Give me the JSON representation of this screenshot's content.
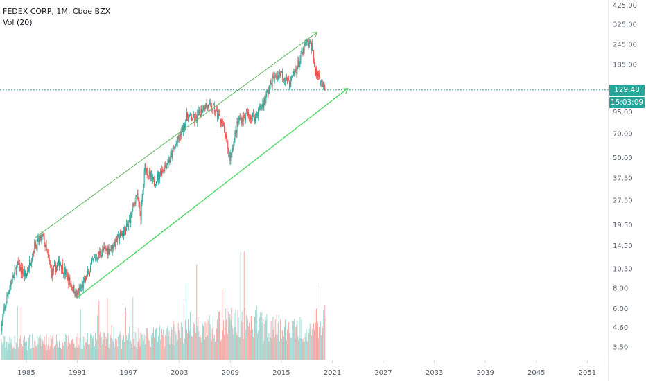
{
  "header": {
    "symbol": "FEDEX CORP",
    "interval": "1M",
    "exchange": "Cboe BZX",
    "volume_label": "Vol (20)"
  },
  "badges": {
    "price": "129.48",
    "countdown": "15:03:09"
  },
  "colors": {
    "up": "#26a69a",
    "down": "#ef5350",
    "vol_up": "#9fd9d3",
    "vol_down": "#f5a7a5",
    "upper_channel": "#66bb6a",
    "lower_channel": "#4cd964",
    "price_line": "#26a69a"
  },
  "chart_data": {
    "type": "candlestick",
    "title": "FEDEX CORP, 1M, Cboe BZX",
    "y_scale": "log",
    "x_ticks": [
      "1985",
      "1991",
      "1997",
      "2003",
      "2009",
      "2015",
      "2021",
      "2027",
      "2033",
      "2039",
      "2045",
      "2051"
    ],
    "y_ticks": [
      "425.00",
      "325.00",
      "245.00",
      "185.00",
      "129.48",
      "95.00",
      "70.00",
      "50.00",
      "37.50",
      "27.50",
      "19.50",
      "14.50",
      "10.50",
      "8.00",
      "6.00",
      "4.60",
      "3.50"
    ],
    "ylim": [
      3.2,
      440
    ],
    "xlim": [
      1981.9,
      2053.5
    ],
    "last_price": 129.48,
    "price_path": [
      [
        1982.0,
        4.5
      ],
      [
        1983.0,
        8.0
      ],
      [
        1984.0,
        11.0
      ],
      [
        1985.0,
        9.5
      ],
      [
        1986.0,
        14.5
      ],
      [
        1987.0,
        16.5
      ],
      [
        1988.0,
        10.0
      ],
      [
        1989.0,
        11.5
      ],
      [
        1990.0,
        9.0
      ],
      [
        1991.0,
        7.2
      ],
      [
        1992.0,
        9.0
      ],
      [
        1993.0,
        12.0
      ],
      [
        1994.0,
        13.5
      ],
      [
        1995.0,
        14.0
      ],
      [
        1996.0,
        16.5
      ],
      [
        1997.0,
        19.0
      ],
      [
        1998.0,
        30.0
      ],
      [
        1998.5,
        22.0
      ],
      [
        1999.0,
        44.0
      ],
      [
        2000.0,
        35.0
      ],
      [
        2001.0,
        42.0
      ],
      [
        2002.0,
        50.0
      ],
      [
        2003.0,
        66.0
      ],
      [
        2004.0,
        90.0
      ],
      [
        2005.0,
        85.0
      ],
      [
        2006.0,
        105.0
      ],
      [
        2007.0,
        100.0
      ],
      [
        2008.0,
        85.0
      ],
      [
        2009.0,
        50.0
      ],
      [
        2010.0,
        85.0
      ],
      [
        2011.0,
        90.0
      ],
      [
        2012.0,
        90.0
      ],
      [
        2013.0,
        110.0
      ],
      [
        2014.0,
        150.0
      ],
      [
        2015.0,
        165.0
      ],
      [
        2016.0,
        140.0
      ],
      [
        2017.0,
        185.0
      ],
      [
        2018.0,
        250.0
      ],
      [
        2018.7,
        240.0
      ],
      [
        2019.0,
        165.0
      ],
      [
        2019.5,
        160.0
      ],
      [
        2019.9,
        140.0
      ],
      [
        2020.1,
        129.48
      ]
    ],
    "volume_path": [
      [
        1982.0,
        3.0
      ],
      [
        1990.0,
        3.2
      ],
      [
        1997.0,
        3.5
      ],
      [
        2000.0,
        4.0
      ],
      [
        2004.0,
        5.0
      ],
      [
        2007.0,
        5.5
      ],
      [
        2009.0,
        6.5
      ],
      [
        2012.0,
        6.0
      ],
      [
        2016.0,
        5.0
      ],
      [
        2019.0,
        6.0
      ],
      [
        2020.1,
        7.0
      ]
    ],
    "trendlines": [
      {
        "role": "upper",
        "from": [
          1986.0,
          16.2
        ],
        "to": [
          2019.2,
          290.0
        ]
      },
      {
        "role": "lower",
        "from": [
          1991.0,
          7.0
        ],
        "to": [
          2022.8,
          132.0
        ]
      }
    ]
  }
}
